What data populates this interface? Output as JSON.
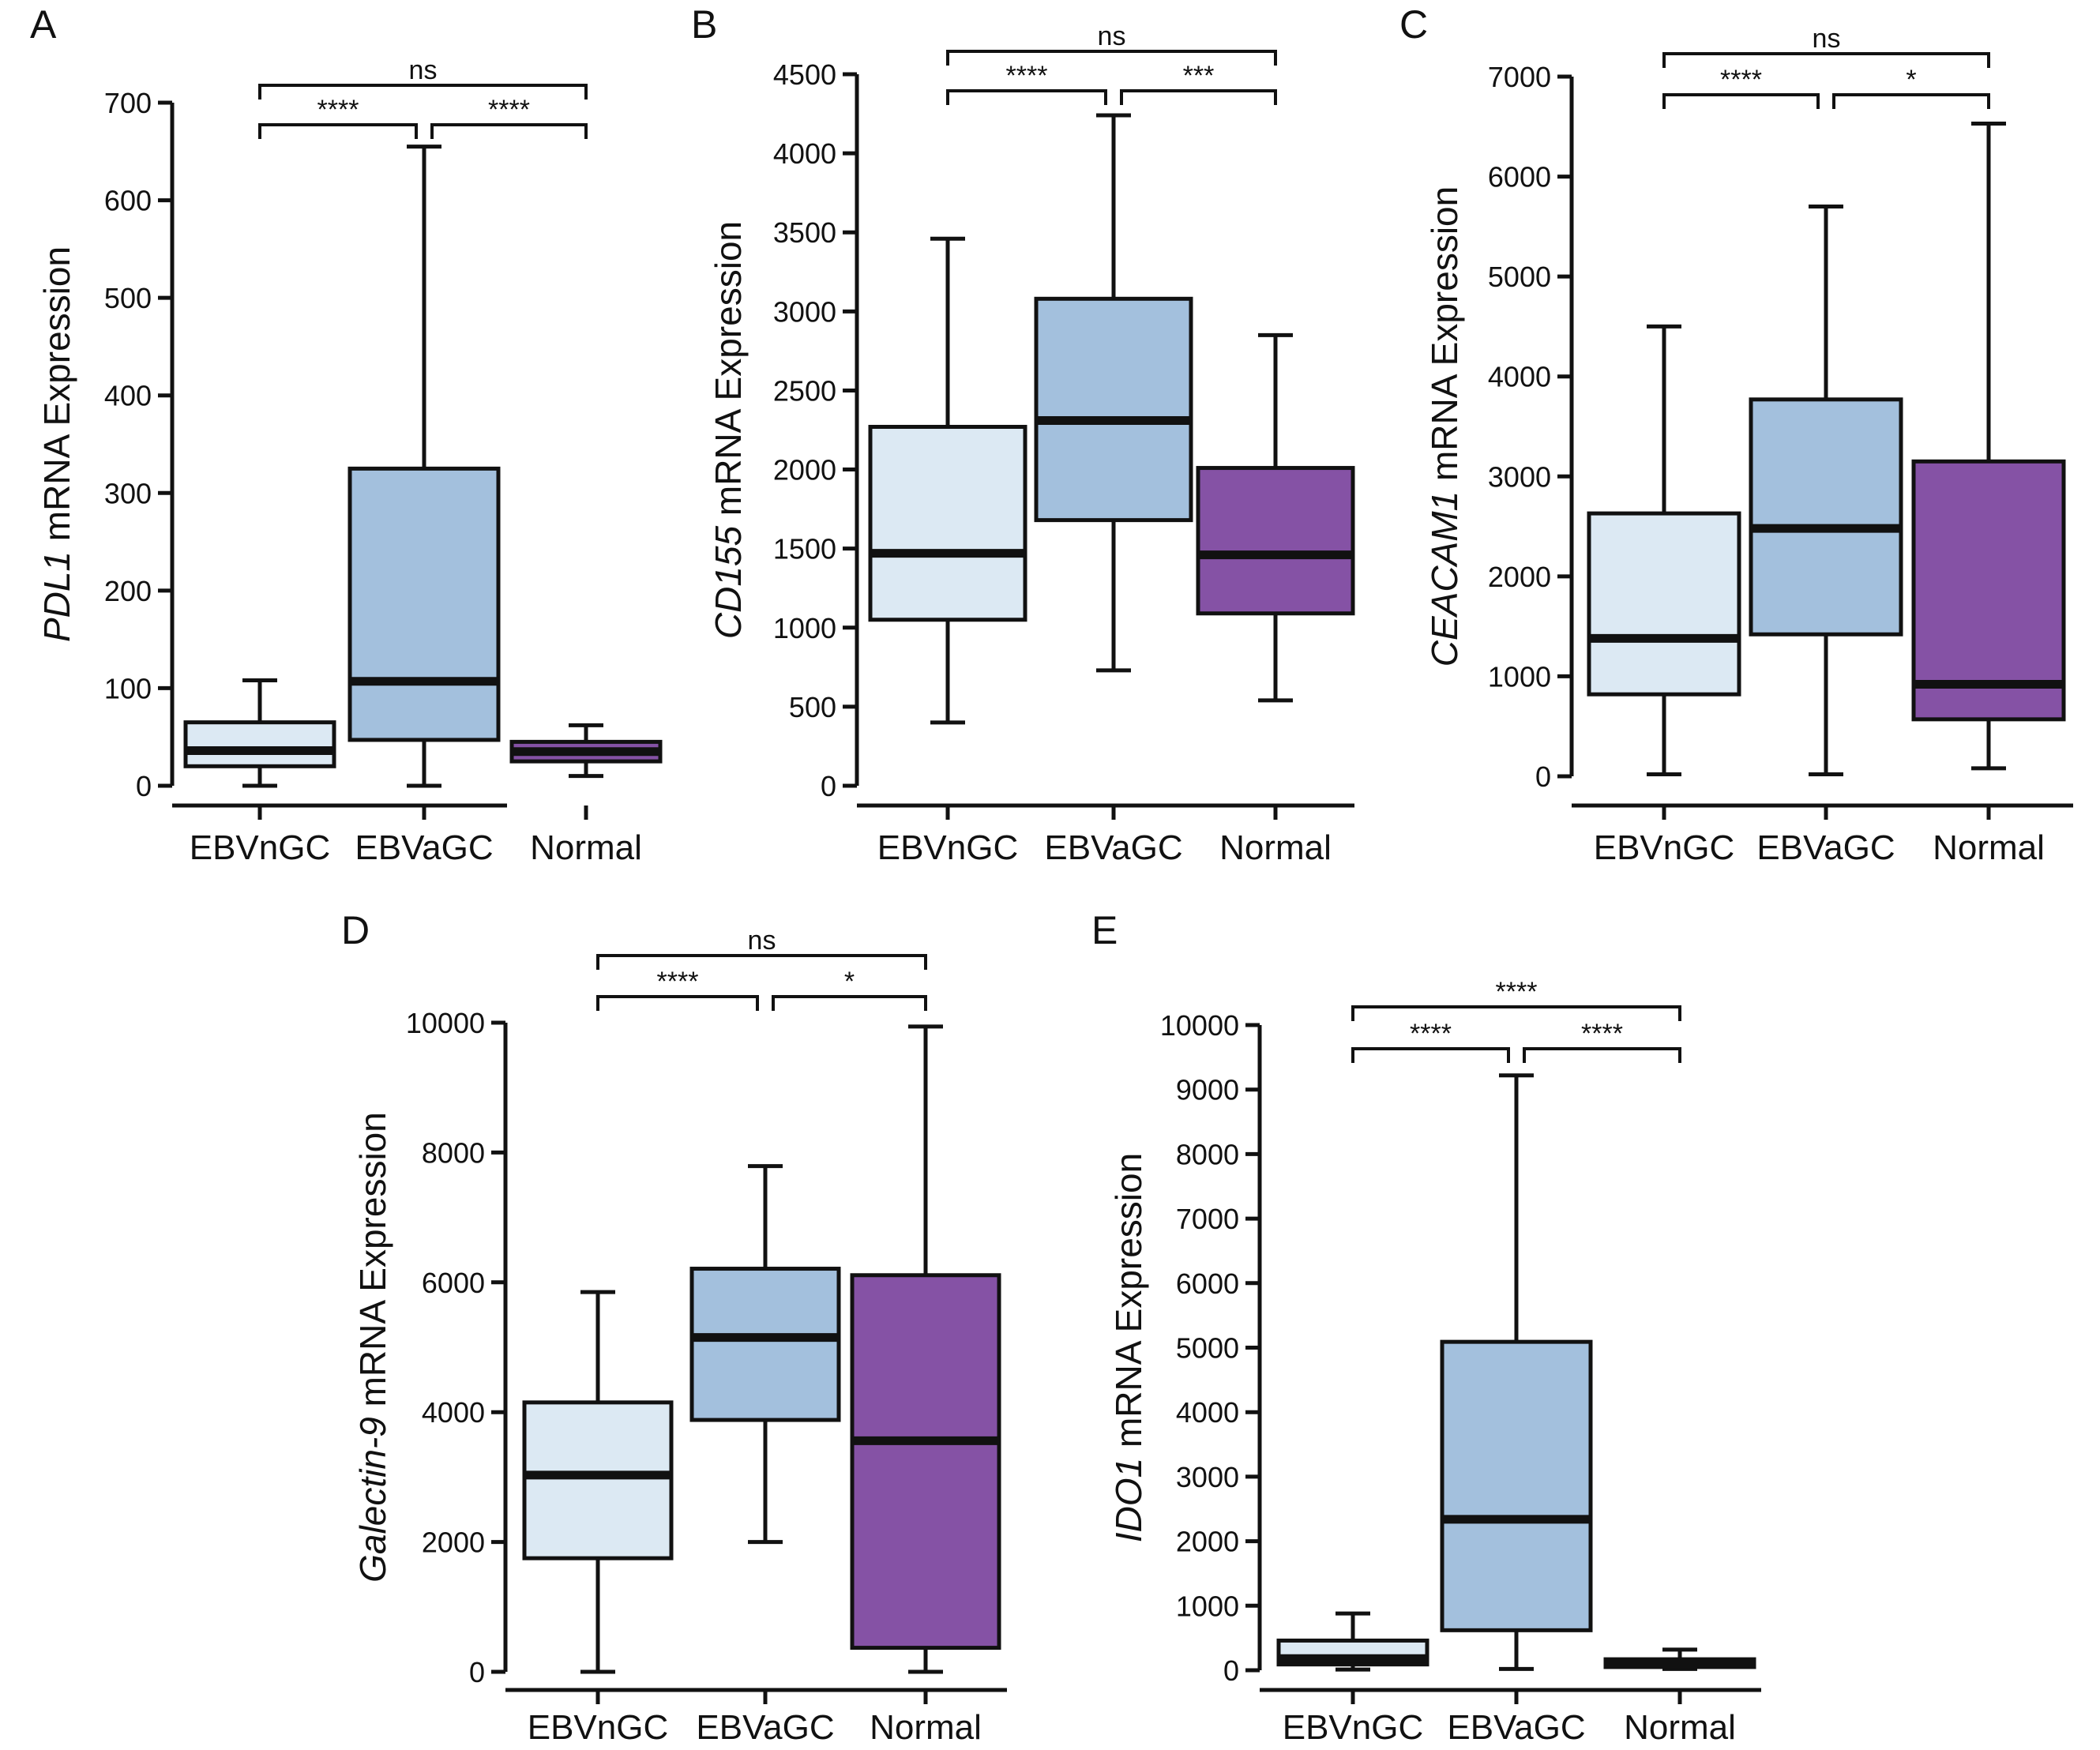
{
  "colors": {
    "EBVnGC": "#dce9f3",
    "EBVaGC": "#a3c0dd",
    "Normal": "#8552a5"
  },
  "chart_data": [
    {
      "panel": "A",
      "type": "box",
      "ylabel_italic": "PDL1",
      "ylabel_rest": " mRNA Expression",
      "categories": [
        "EBVnGC",
        "EBVaGC",
        "Normal"
      ],
      "ylim": [
        0,
        700
      ],
      "yticks": [
        0,
        100,
        200,
        300,
        400,
        500,
        600,
        700
      ],
      "boxes": [
        {
          "min": 0,
          "q1": 20,
          "median": 36,
          "q3": 65,
          "max": 108
        },
        {
          "min": 0,
          "q1": 47,
          "median": 107,
          "q3": 325,
          "max": 655
        },
        {
          "min": 10,
          "q1": 25,
          "median": 35,
          "q3": 45,
          "max": 62
        }
      ],
      "comparisons": [
        {
          "from": 0,
          "to": 2,
          "label": "ns"
        },
        {
          "from": 0,
          "to": 1,
          "label": "****"
        },
        {
          "from": 1,
          "to": 2,
          "label": "****"
        }
      ]
    },
    {
      "panel": "B",
      "type": "box",
      "ylabel_italic": "CD155",
      "ylabel_rest": " mRNA Expression",
      "categories": [
        "EBVnGC",
        "EBVaGC",
        "Normal"
      ],
      "ylim": [
        0,
        4500
      ],
      "yticks": [
        0,
        500,
        1000,
        1500,
        2000,
        2500,
        3000,
        3500,
        4000,
        4500
      ],
      "boxes": [
        {
          "min": 400,
          "q1": 1050,
          "median": 1470,
          "q3": 2270,
          "max": 3460
        },
        {
          "min": 730,
          "q1": 1680,
          "median": 2310,
          "q3": 3080,
          "max": 4240
        },
        {
          "min": 540,
          "q1": 1090,
          "median": 1460,
          "q3": 2010,
          "max": 2850
        }
      ],
      "comparisons": [
        {
          "from": 0,
          "to": 2,
          "label": "ns"
        },
        {
          "from": 0,
          "to": 1,
          "label": "****"
        },
        {
          "from": 1,
          "to": 2,
          "label": "***"
        }
      ]
    },
    {
      "panel": "C",
      "type": "box",
      "ylabel_italic": "CEACAM1",
      "ylabel_rest": " mRNA Expression",
      "categories": [
        "EBVnGC",
        "EBVaGC",
        "Normal"
      ],
      "ylim": [
        0,
        7000
      ],
      "yticks": [
        0,
        1000,
        2000,
        3000,
        4000,
        5000,
        6000,
        7000
      ],
      "boxes": [
        {
          "min": 20,
          "q1": 820,
          "median": 1380,
          "q3": 2630,
          "max": 4500
        },
        {
          "min": 20,
          "q1": 1420,
          "median": 2480,
          "q3": 3770,
          "max": 5700
        },
        {
          "min": 80,
          "q1": 570,
          "median": 920,
          "q3": 3150,
          "max": 6530
        }
      ],
      "comparisons": [
        {
          "from": 0,
          "to": 2,
          "label": "ns"
        },
        {
          "from": 0,
          "to": 1,
          "label": "****"
        },
        {
          "from": 1,
          "to": 2,
          "label": "*"
        }
      ]
    },
    {
      "panel": "D",
      "type": "box",
      "ylabel_italic": "Galectin-9",
      "ylabel_rest": " mRNA Expression",
      "categories": [
        "EBVnGC",
        "EBVaGC",
        "Normal"
      ],
      "ylim": [
        0,
        10000
      ],
      "yticks": [
        0,
        2000,
        4000,
        6000,
        8000,
        10000
      ],
      "boxes": [
        {
          "min": 0,
          "q1": 1750,
          "median": 3030,
          "q3": 4150,
          "max": 5850
        },
        {
          "min": 2000,
          "q1": 3880,
          "median": 5150,
          "q3": 6210,
          "max": 7790
        },
        {
          "min": 0,
          "q1": 370,
          "median": 3560,
          "q3": 6110,
          "max": 9940
        }
      ],
      "comparisons": [
        {
          "from": 0,
          "to": 2,
          "label": "ns"
        },
        {
          "from": 0,
          "to": 1,
          "label": "****"
        },
        {
          "from": 1,
          "to": 2,
          "label": "*"
        }
      ]
    },
    {
      "panel": "E",
      "type": "box",
      "ylabel_italic": "IDO1",
      "ylabel_rest": " mRNA Expression",
      "categories": [
        "EBVnGC",
        "EBVaGC",
        "Normal"
      ],
      "ylim": [
        0,
        10000
      ],
      "yticks": [
        0,
        1000,
        2000,
        3000,
        4000,
        5000,
        6000,
        7000,
        8000,
        9000,
        10000
      ],
      "boxes": [
        {
          "min": 10,
          "q1": 90,
          "median": 180,
          "q3": 460,
          "max": 880
        },
        {
          "min": 20,
          "q1": 620,
          "median": 2340,
          "q3": 5090,
          "max": 9220
        },
        {
          "min": 20,
          "q1": 50,
          "median": 100,
          "q3": 170,
          "max": 320
        }
      ],
      "comparisons": [
        {
          "from": 0,
          "to": 2,
          "label": "****"
        },
        {
          "from": 0,
          "to": 1,
          "label": "****"
        },
        {
          "from": 1,
          "to": 2,
          "label": "****"
        }
      ]
    }
  ]
}
